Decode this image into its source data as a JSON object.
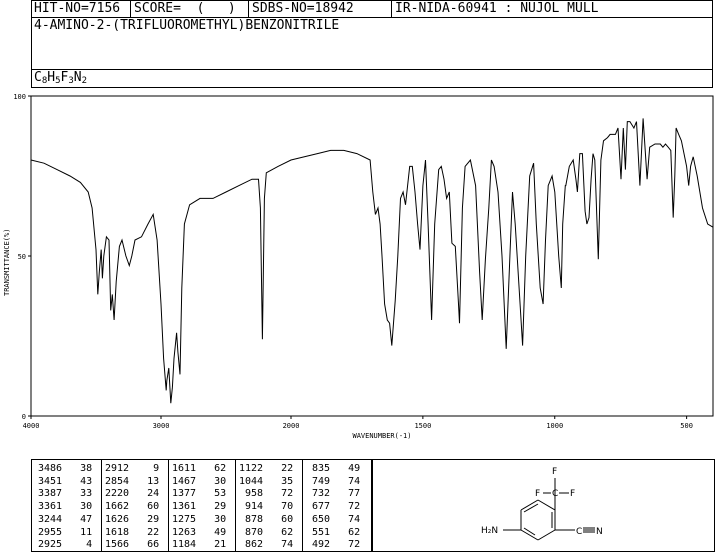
{
  "header": {
    "hit_no": "HIT-NO=7156",
    "score": "SCORE=  (   )",
    "sdbs_no": "SDBS-NO=18942",
    "ir_info": "IR-NIDA-60941 : NUJOL MULL",
    "compound_name": "4-AMINO-2-(TRIFLUOROMETHYL)BENZONITRILE",
    "formula": {
      "c": "C",
      "c_n": "8",
      "h": "H",
      "h_n": "5",
      "f": "F",
      "f_n": "3",
      "n": "N",
      "n_n": "2"
    }
  },
  "chart_data": {
    "type": "line",
    "title": "",
    "xlabel": "WAVENUMBER(-1)",
    "ylabel": "TRANSMITTANCE(%)",
    "xlim": [
      4000,
      400
    ],
    "ylim": [
      0,
      100
    ],
    "x_ticks": [
      4000,
      3000,
      2000,
      1500,
      1000,
      500
    ],
    "y_ticks": [
      0,
      50,
      100
    ],
    "grid": false,
    "series": [
      {
        "points": [
          [
            4000,
            80
          ],
          [
            3900,
            79
          ],
          [
            3800,
            77
          ],
          [
            3700,
            75
          ],
          [
            3620,
            73
          ],
          [
            3560,
            70
          ],
          [
            3530,
            65
          ],
          [
            3500,
            52
          ],
          [
            3486,
            38
          ],
          [
            3475,
            45
          ],
          [
            3460,
            52
          ],
          [
            3451,
            43
          ],
          [
            3440,
            50
          ],
          [
            3420,
            56
          ],
          [
            3400,
            55
          ],
          [
            3387,
            33
          ],
          [
            3375,
            38
          ],
          [
            3361,
            30
          ],
          [
            3345,
            42
          ],
          [
            3320,
            53
          ],
          [
            3300,
            55
          ],
          [
            3270,
            50
          ],
          [
            3244,
            47
          ],
          [
            3225,
            50
          ],
          [
            3200,
            55
          ],
          [
            3150,
            56
          ],
          [
            3100,
            60
          ],
          [
            3060,
            63
          ],
          [
            3030,
            55
          ],
          [
            3000,
            35
          ],
          [
            2980,
            18
          ],
          [
            2960,
            8
          ],
          [
            2955,
            11
          ],
          [
            2940,
            15
          ],
          [
            2925,
            4
          ],
          [
            2912,
            9
          ],
          [
            2900,
            18
          ],
          [
            2880,
            26
          ],
          [
            2870,
            20
          ],
          [
            2854,
            13
          ],
          [
            2840,
            40
          ],
          [
            2820,
            60
          ],
          [
            2780,
            66
          ],
          [
            2700,
            68
          ],
          [
            2600,
            68
          ],
          [
            2500,
            70
          ],
          [
            2400,
            72
          ],
          [
            2300,
            74
          ],
          [
            2250,
            74
          ],
          [
            2235,
            65
          ],
          [
            2220,
            24
          ],
          [
            2205,
            68
          ],
          [
            2190,
            76
          ],
          [
            2100,
            78
          ],
          [
            2000,
            80
          ],
          [
            1900,
            82
          ],
          [
            1850,
            83
          ],
          [
            1800,
            83
          ],
          [
            1750,
            82
          ],
          [
            1700,
            80
          ],
          [
            1690,
            70
          ],
          [
            1680,
            63
          ],
          [
            1670,
            65
          ],
          [
            1662,
            60
          ],
          [
            1655,
            50
          ],
          [
            1645,
            35
          ],
          [
            1635,
            30
          ],
          [
            1626,
            29
          ],
          [
            1618,
            22
          ],
          [
            1605,
            36
          ],
          [
            1595,
            50
          ],
          [
            1585,
            68
          ],
          [
            1575,
            70
          ],
          [
            1566,
            66
          ],
          [
            1550,
            78
          ],
          [
            1540,
            78
          ],
          [
            1530,
            70
          ],
          [
            1520,
            60
          ],
          [
            1511,
            52
          ],
          [
            1500,
            72
          ],
          [
            1490,
            80
          ],
          [
            1480,
            60
          ],
          [
            1467,
            30
          ],
          [
            1455,
            60
          ],
          [
            1440,
            77
          ],
          [
            1430,
            78
          ],
          [
            1420,
            74
          ],
          [
            1410,
            68
          ],
          [
            1400,
            70
          ],
          [
            1390,
            54
          ],
          [
            1377,
            53
          ],
          [
            1365,
            35
          ],
          [
            1361,
            29
          ],
          [
            1350,
            65
          ],
          [
            1340,
            78
          ],
          [
            1320,
            80
          ],
          [
            1300,
            72
          ],
          [
            1285,
            45
          ],
          [
            1275,
            30
          ],
          [
            1263,
            49
          ],
          [
            1250,
            65
          ],
          [
            1240,
            80
          ],
          [
            1230,
            78
          ],
          [
            1215,
            70
          ],
          [
            1200,
            50
          ],
          [
            1184,
            21
          ],
          [
            1170,
            50
          ],
          [
            1160,
            70
          ],
          [
            1150,
            60
          ],
          [
            1135,
            40
          ],
          [
            1122,
            22
          ],
          [
            1110,
            50
          ],
          [
            1095,
            75
          ],
          [
            1080,
            79
          ],
          [
            1070,
            60
          ],
          [
            1055,
            40
          ],
          [
            1044,
            35
          ],
          [
            1035,
            55
          ],
          [
            1025,
            72
          ],
          [
            1010,
            75
          ],
          [
            1000,
            70
          ],
          [
            985,
            50
          ],
          [
            975,
            40
          ],
          [
            970,
            60
          ],
          [
            960,
            72
          ],
          [
            958,
            72
          ],
          [
            945,
            78
          ],
          [
            930,
            80
          ],
          [
            920,
            74
          ],
          [
            914,
            70
          ],
          [
            905,
            82
          ],
          [
            895,
            82
          ],
          [
            885,
            64
          ],
          [
            878,
            60
          ],
          [
            870,
            62
          ],
          [
            862,
            74
          ],
          [
            855,
            82
          ],
          [
            848,
            80
          ],
          [
            835,
            49
          ],
          [
            825,
            80
          ],
          [
            815,
            86
          ],
          [
            800,
            87
          ],
          [
            790,
            88
          ],
          [
            770,
            88
          ],
          [
            760,
            90
          ],
          [
            749,
            74
          ],
          [
            740,
            90
          ],
          [
            732,
            77
          ],
          [
            725,
            92
          ],
          [
            715,
            92
          ],
          [
            700,
            90
          ],
          [
            690,
            92
          ],
          [
            677,
            72
          ],
          [
            665,
            93
          ],
          [
            650,
            74
          ],
          [
            640,
            84
          ],
          [
            620,
            85
          ],
          [
            600,
            85
          ],
          [
            590,
            84
          ],
          [
            580,
            85
          ],
          [
            570,
            84
          ],
          [
            560,
            83
          ],
          [
            551,
            62
          ],
          [
            545,
            75
          ],
          [
            540,
            90
          ],
          [
            530,
            88
          ],
          [
            520,
            86
          ],
          [
            505,
            80
          ],
          [
            500,
            78
          ],
          [
            492,
            72
          ],
          [
            485,
            78
          ],
          [
            475,
            81
          ],
          [
            460,
            75
          ],
          [
            440,
            65
          ],
          [
            420,
            60
          ],
          [
            400,
            59
          ]
        ]
      }
    ]
  },
  "peak_table": [
    [
      [
        3486,
        38
      ],
      [
        3451,
        43
      ],
      [
        3387,
        33
      ],
      [
        3361,
        30
      ],
      [
        3244,
        47
      ],
      [
        2955,
        11
      ],
      [
        2925,
        4
      ]
    ],
    [
      [
        2912,
        9
      ],
      [
        2854,
        13
      ],
      [
        2220,
        24
      ],
      [
        1662,
        60
      ],
      [
        1626,
        29
      ],
      [
        1618,
        22
      ],
      [
        1566,
        66
      ]
    ],
    [
      [
        1611,
        62
      ],
      [
        1467,
        30
      ],
      [
        1377,
        53
      ],
      [
        1361,
        29
      ],
      [
        1275,
        30
      ],
      [
        1263,
        49
      ],
      [
        1184,
        21
      ]
    ],
    [
      [
        1122,
        22
      ],
      [
        1044,
        35
      ],
      [
        958,
        72
      ],
      [
        914,
        70
      ],
      [
        878,
        60
      ],
      [
        870,
        62
      ],
      [
        862,
        74
      ]
    ],
    [
      [
        835,
        49
      ],
      [
        749,
        74
      ],
      [
        732,
        77
      ],
      [
        677,
        72
      ],
      [
        650,
        74
      ],
      [
        551,
        62
      ],
      [
        492,
        72
      ]
    ]
  ],
  "structure": {
    "amino_label": "H₂N",
    "nitrile_c": "C",
    "nitrile_n": "N",
    "cf3_c": "C",
    "f_top": "F",
    "f_left": "F",
    "f_right": "F"
  }
}
